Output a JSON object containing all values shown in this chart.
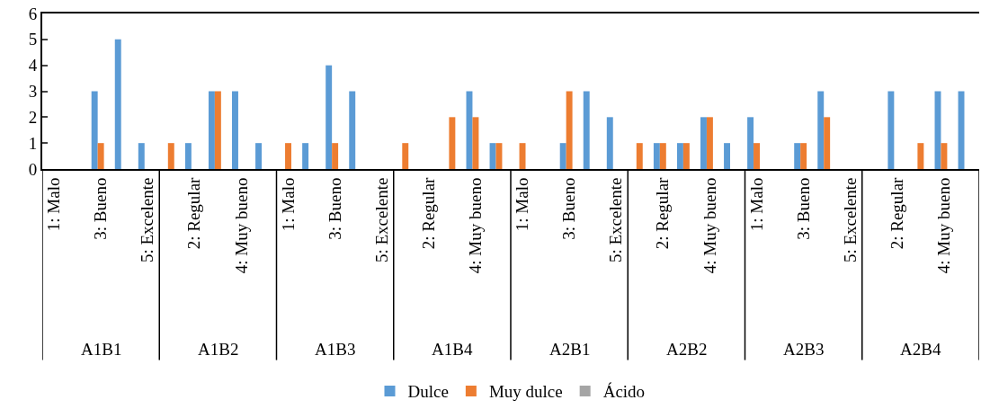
{
  "chart_data": {
    "type": "bar",
    "categories": [
      "1: Malo",
      null,
      "3: Bueno",
      null,
      "5: Excelente",
      null,
      "2: Regular",
      null,
      "4: Muy bueno",
      null,
      "1: Malo",
      null,
      "3: Bueno",
      null,
      "5: Excelente",
      null,
      "2: Regular",
      null,
      "4: Muy bueno",
      null,
      "1: Malo",
      null,
      "3: Bueno",
      null,
      "5: Excelente",
      null,
      "2: Regular",
      null,
      "4: Muy bueno",
      null,
      "1: Malo",
      null,
      "3: Bueno",
      null,
      "5: Excelente",
      null,
      "2: Regular",
      null,
      "4: Muy bueno",
      null
    ],
    "annotations": [
      "A1B1",
      "A1B2",
      "A1B3",
      "A1B4",
      "A2B1",
      "A2B2",
      "A2B3",
      "A2B4"
    ],
    "series": [
      {
        "name": "Dulce",
        "color": "#5b9bd5",
        "values": [
          0,
          0,
          3,
          5,
          1,
          0,
          1,
          3,
          3,
          1,
          0,
          1,
          4,
          3,
          0,
          0,
          0,
          0,
          3,
          1,
          0,
          0,
          1,
          3,
          2,
          0,
          1,
          1,
          2,
          1,
          2,
          0,
          1,
          3,
          0,
          0,
          3,
          0,
          3,
          3
        ]
      },
      {
        "name": "Muy dulce",
        "color": "#ed7d31",
        "values": [
          0,
          0,
          1,
          0,
          0,
          1,
          0,
          3,
          0,
          0,
          1,
          0,
          1,
          0,
          0,
          1,
          0,
          2,
          2,
          1,
          1,
          0,
          3,
          0,
          0,
          1,
          1,
          1,
          2,
          0,
          1,
          0,
          1,
          2,
          0,
          0,
          0,
          1,
          1,
          0
        ]
      },
      {
        "name": "Ácido",
        "color": "#a5a5a5",
        "values": [
          0,
          0,
          0,
          0,
          0,
          0,
          0,
          0,
          0,
          0,
          0,
          0,
          0,
          0,
          0,
          0,
          0,
          0,
          0,
          0,
          0,
          0,
          0,
          0,
          0,
          0,
          0,
          0,
          0,
          0,
          0,
          0,
          0,
          0,
          0,
          0,
          0,
          0,
          0,
          0
        ]
      }
    ],
    "ylim": [
      0,
      6
    ],
    "yticks": [
      0,
      1,
      2,
      3,
      4,
      5,
      6
    ],
    "grid": false,
    "legend": "bottom"
  }
}
